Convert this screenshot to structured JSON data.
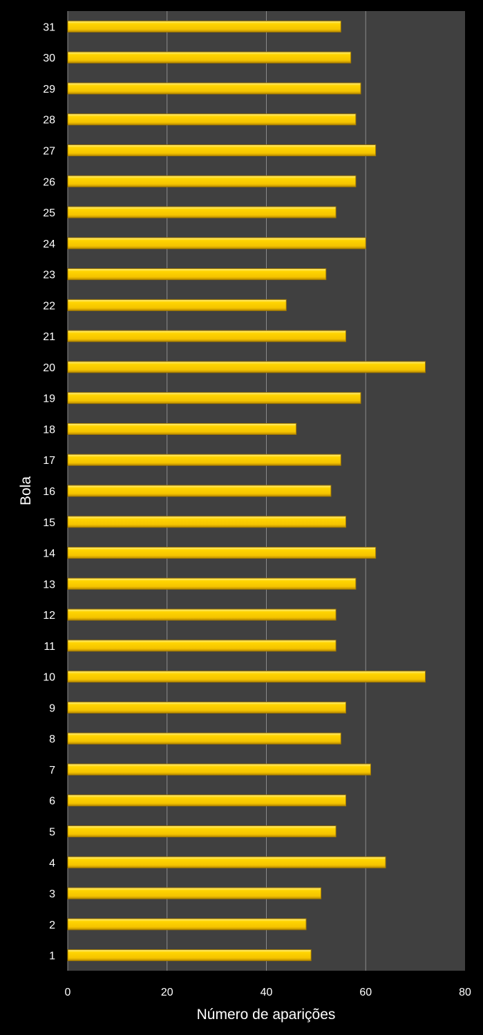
{
  "chart_data": {
    "type": "bar",
    "orientation": "horizontal",
    "title": "",
    "xlabel": "Número de aparições",
    "ylabel": "Bola",
    "xlim": [
      0,
      80
    ],
    "xticks": [
      "0",
      "20",
      "40",
      "60",
      "80"
    ],
    "grid": true,
    "legend": "none",
    "colors": {
      "background": "#000000",
      "plot_area": "#404040",
      "bar": "#FFD200",
      "bar_edge": "#A07800",
      "gridline": "#8C8C8C",
      "text": "#FFFFFF"
    },
    "categories": [
      "1",
      "2",
      "3",
      "4",
      "5",
      "6",
      "7",
      "8",
      "9",
      "10",
      "11",
      "12",
      "13",
      "14",
      "15",
      "16",
      "17",
      "18",
      "19",
      "20",
      "21",
      "22",
      "23",
      "24",
      "25",
      "26",
      "27",
      "28",
      "29",
      "30",
      "31"
    ],
    "values": [
      49,
      48,
      51,
      64,
      54,
      56,
      61,
      55,
      56,
      72,
      54,
      54,
      58,
      62,
      56,
      53,
      55,
      46,
      59,
      72,
      56,
      44,
      52,
      60,
      54,
      58,
      62,
      58,
      59,
      57,
      55
    ]
  }
}
